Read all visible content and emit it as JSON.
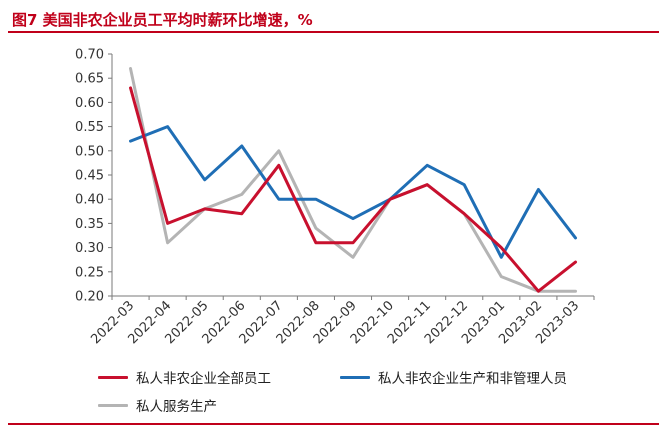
{
  "header": {
    "title": "图7  美国非农企业员工平均时薪环比增速，%"
  },
  "chart_data": {
    "type": "line",
    "categories": [
      "2022-03",
      "2022-04",
      "2022-05",
      "2022-06",
      "2022-07",
      "2022-08",
      "2022-09",
      "2022-10",
      "2022-11",
      "2022-12",
      "2023-01",
      "2023-02",
      "2023-03"
    ],
    "series": [
      {
        "name": "私人非农企业全部员工",
        "color": "#c8102e",
        "values": [
          0.63,
          0.35,
          0.38,
          0.37,
          0.47,
          0.31,
          0.31,
          0.4,
          0.43,
          0.37,
          0.3,
          0.21,
          0.27
        ]
      },
      {
        "name": "私人非农企业生产和非管理人员",
        "color": "#1f6eb5",
        "values": [
          0.52,
          0.55,
          0.44,
          0.51,
          0.4,
          0.4,
          0.36,
          0.4,
          0.47,
          0.43,
          0.28,
          0.42,
          0.32
        ]
      },
      {
        "name": "私人服务生产",
        "color": "#b4b4b4",
        "values": [
          0.67,
          0.31,
          0.38,
          0.41,
          0.5,
          0.34,
          0.28,
          0.4,
          0.43,
          0.37,
          0.24,
          0.21,
          0.21
        ]
      }
    ],
    "ylim": [
      0.2,
      0.7
    ],
    "yticks": [
      "0.70",
      "0.65",
      "0.60",
      "0.55",
      "0.50",
      "0.45",
      "0.40",
      "0.35",
      "0.30",
      "0.25",
      "0.20"
    ],
    "legend_position": "bottom",
    "grid": false
  }
}
